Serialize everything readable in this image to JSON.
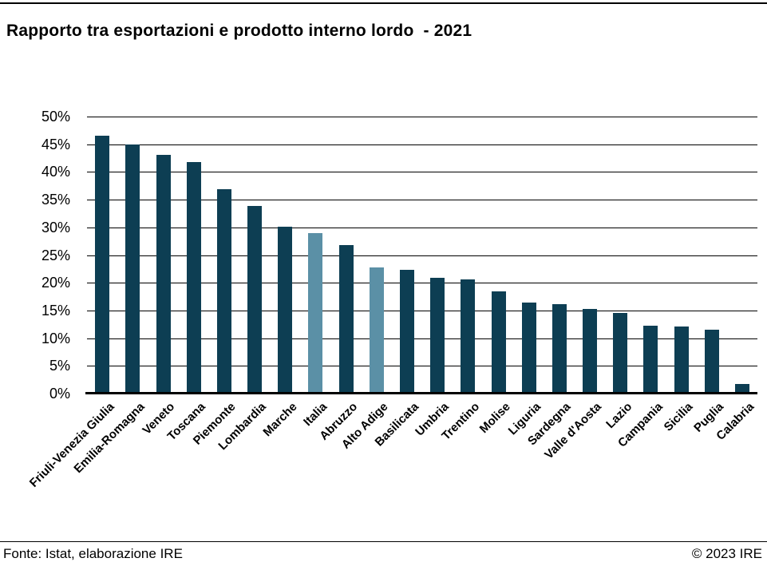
{
  "title": "Rapporto tra esportazioni e prodotto interno lordo  - 2021",
  "footer": {
    "source": "Fonte: Istat, elaborazione IRE",
    "copyright": "© 2023 IRE"
  },
  "colors": {
    "bar_dark": "#0d3e53",
    "bar_highlight": "#5b90a6",
    "grid": "#000000",
    "background": "#ffffff"
  },
  "chart_data": {
    "type": "bar",
    "title": "Rapporto tra esportazioni e prodotto interno lordo  - 2021",
    "xlabel": "",
    "ylabel": "",
    "ylim": [
      0,
      50
    ],
    "ytick_step": 5,
    "grid": true,
    "legend": false,
    "unit": "%",
    "categories": [
      "Friuli-Venezia Giulia",
      "Emilia-Romagna",
      "Veneto",
      "Toscana",
      "Piemonte",
      "Lombardia",
      "Marche",
      "Italia",
      "Abruzzo",
      "Alto Adige",
      "Basilicata",
      "Umbria",
      "Trentino",
      "Molise",
      "Liguria",
      "Sardegna",
      "Valle d'Aosta",
      "Lazio",
      "Campania",
      "Sicilia",
      "Puglia",
      "Calabria"
    ],
    "values": [
      46.6,
      45.0,
      43.1,
      41.8,
      36.9,
      33.8,
      30.1,
      29.0,
      26.8,
      22.8,
      22.3,
      20.9,
      20.6,
      18.4,
      16.4,
      16.2,
      15.3,
      14.6,
      12.3,
      12.1,
      11.6,
      1.7
    ],
    "highlighted_categories": [
      "Italia",
      "Alto Adige"
    ],
    "ytick_values": [
      50,
      45,
      40,
      35,
      30,
      25,
      20,
      15,
      10,
      5,
      0
    ],
    "ytick_labels": [
      "50%",
      "45%",
      "40%",
      "35%",
      "30%",
      "25%",
      "20%",
      "15%",
      "10%",
      "5%",
      "0%"
    ]
  }
}
